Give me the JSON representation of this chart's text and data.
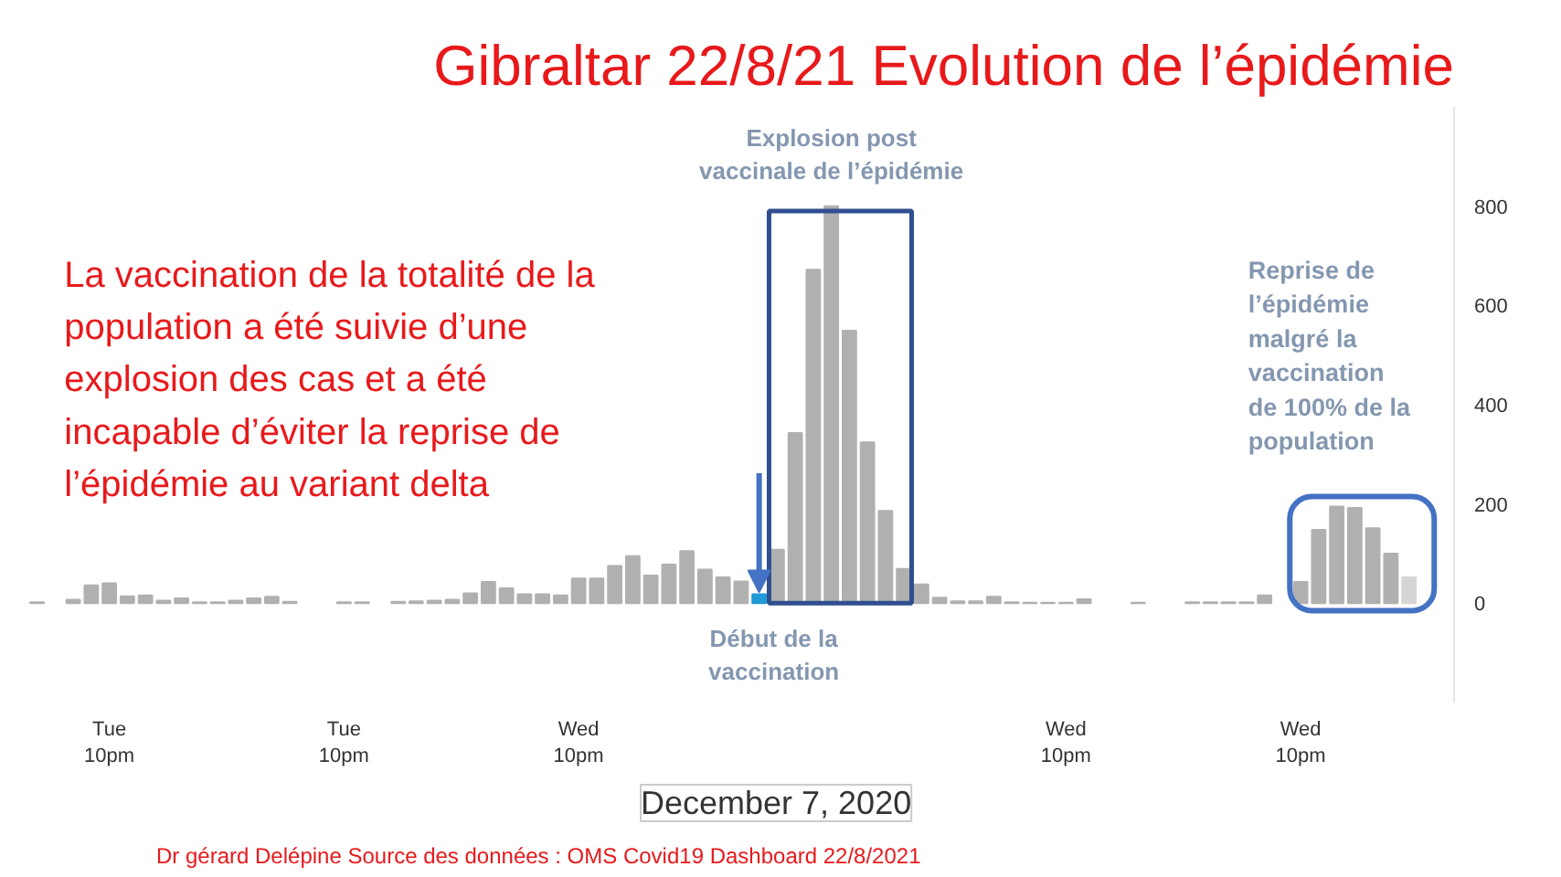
{
  "chart_data": {
    "type": "bar",
    "title": "Gibraltar 22/8/21 Evolution de l’épidémie",
    "categories": [
      null,
      null,
      null,
      null,
      "Tue\n10pm",
      null,
      null,
      null,
      null,
      null,
      null,
      null,
      null,
      null,
      null,
      null,
      null,
      "Tue\n10pm",
      null,
      null,
      null,
      null,
      null,
      null,
      null,
      null,
      null,
      null,
      null,
      null,
      "Wed\n10pm",
      null,
      null,
      null,
      null,
      null,
      null,
      null,
      null,
      null,
      null,
      null,
      null,
      null,
      null,
      null,
      null,
      null,
      null,
      null,
      null,
      null,
      null,
      null,
      null,
      null,
      null,
      "Wed\n10pm",
      null,
      null,
      null,
      null,
      null,
      null,
      null,
      null,
      null,
      null,
      null,
      null,
      "Wed\n10pm",
      null,
      null,
      null,
      null,
      null,
      null
    ],
    "values": [
      2,
      null,
      7,
      36,
      40,
      14,
      16,
      5,
      10,
      2,
      2,
      5,
      10,
      13,
      3,
      null,
      null,
      2,
      2,
      null,
      3,
      4,
      5,
      7,
      20,
      43,
      30,
      18,
      18,
      16,
      50,
      50,
      75,
      95,
      56,
      78,
      105,
      68,
      52,
      44,
      18,
      108,
      343,
      672,
      800,
      549,
      324,
      186,
      69,
      38,
      11,
      4,
      4,
      13,
      2,
      1,
      1,
      1,
      8,
      null,
      null,
      1,
      null,
      null,
      2,
      2,
      2,
      2,
      16,
      null,
      43,
      148,
      195,
      192,
      151,
      100,
      52
    ],
    "colors": [
      "#b0b0b0",
      "#b0b0b0",
      "#b0b0b0",
      "#b0b0b0",
      "#b0b0b0",
      "#b0b0b0",
      "#b0b0b0",
      "#b0b0b0",
      "#b0b0b0",
      "#b0b0b0",
      "#b0b0b0",
      "#b0b0b0",
      "#b0b0b0",
      "#b0b0b0",
      "#b0b0b0",
      "#b0b0b0",
      "#b0b0b0",
      "#b0b0b0",
      "#b0b0b0",
      "#b0b0b0",
      "#b0b0b0",
      "#b0b0b0",
      "#b0b0b0",
      "#b0b0b0",
      "#b0b0b0",
      "#b0b0b0",
      "#b0b0b0",
      "#b0b0b0",
      "#b0b0b0",
      "#b0b0b0",
      "#b0b0b0",
      "#b0b0b0",
      "#b0b0b0",
      "#b0b0b0",
      "#b0b0b0",
      "#b0b0b0",
      "#b0b0b0",
      "#b0b0b0",
      "#b0b0b0",
      "#b0b0b0",
      "#1e9ad6",
      "#b0b0b0",
      "#b0b0b0",
      "#b0b0b0",
      "#b0b0b0",
      "#b0b0b0",
      "#b0b0b0",
      "#b0b0b0",
      "#b0b0b0",
      "#b0b0b0",
      "#b0b0b0",
      "#b0b0b0",
      "#b0b0b0",
      "#b0b0b0",
      "#b0b0b0",
      "#b0b0b0",
      "#b0b0b0",
      "#b0b0b0",
      "#b0b0b0",
      "#b0b0b0",
      "#b0b0b0",
      "#b0b0b0",
      "#b0b0b0",
      "#b0b0b0",
      "#b0b0b0",
      "#b0b0b0",
      "#b0b0b0",
      "#b0b0b0",
      "#b0b0b0",
      "#b0b0b0",
      "#b0b0b0",
      "#b0b0b0",
      "#b0b0b0",
      "#b0b0b0",
      "#b0b0b0",
      "#b0b0b0",
      "#d6d6d6"
    ],
    "ylim": [
      -200,
      1000
    ],
    "yticks": [
      0,
      200,
      400,
      600,
      800
    ],
    "grid": false,
    "annotations": [
      "La vaccination de la totalité de la\npopulation a été suivie d’une\nexplosion des cas et a été\nincapable d’éviter la reprise de\nl’épidémie au variant delta",
      {
        "text": "Explosion post\nvaccinale de l’épidémie",
        "y": 800
      },
      {
        "text": "Début de la\nvaccination",
        "y": 0
      },
      {
        "text": "Reprise de\nl’épidémie\nmalgré la\nvaccination\nde 100% de la\npopulation",
        "y": 195
      },
      "December 7, 2020",
      "Dr gérard Delépine Source des données : OMS Covid19 Dashboard 22/8/2021"
    ]
  }
}
